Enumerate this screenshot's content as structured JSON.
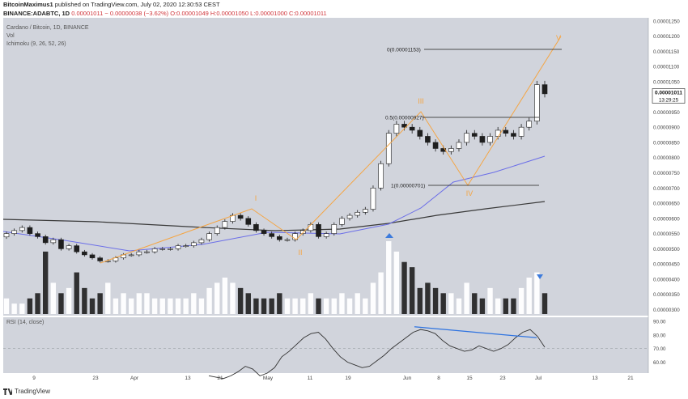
{
  "header": {
    "line1_user": "BitcoinMaximus1",
    "line1_rest": "published on TradingView.com, July 02, 2020 12:30:53 CEST",
    "line2_symbol": "BINANCE:ADABTC, 1D",
    "line2_price": "0.00001011",
    "line2_change": "− 0.00000038 (−3.62%)",
    "line2_ohlc": "O:0.00001049 H:0.00001050 L:0.00001000 C:0.00001011"
  },
  "legend": {
    "title": "Cardano / Bitcoin, 1D, BINANCE",
    "vol": "Vol",
    "ichimoku": "Ichimoku (9, 26, 52, 26)",
    "rsi": "RSI (14, close)"
  },
  "footer": {
    "brand": "TradingView"
  },
  "colors": {
    "panel": "#d1d4dc",
    "up": "#ffffff",
    "down": "#1e1e1e",
    "wave": "#f5a543",
    "kijun": "#6b6ee8",
    "baseline": "#3a3a3a",
    "rsi": "#333333",
    "divergence": "#2e73e0",
    "marker": "#3d7bdc"
  },
  "chart_data": {
    "type": "candlestick",
    "x_axis_ticks": [
      "9",
      "23",
      "Apr",
      "13",
      "21",
      "May",
      "11",
      "19",
      "Jun",
      "8",
      "15",
      "23",
      "Jul",
      "13",
      "21"
    ],
    "y_axis": {
      "ticks": [
        "0.00001250",
        "0.00001200",
        "0.00001150",
        "0.00001100",
        "0.00001050",
        "0.00000950",
        "0.00000900",
        "0.00000850",
        "0.00000800",
        "0.00000750",
        "0.00000700",
        "0.00000650",
        "0.00000600",
        "0.00000550",
        "0.00000500",
        "0.00000450",
        "0.00000400",
        "0.00000350",
        "0.00000300"
      ],
      "range": [
        2.8e-06,
        1.26e-05
      ]
    },
    "last_price": {
      "value": "0.00001011",
      "countdown": "13:29:25"
    },
    "candles_close": [
      5.5e-06,
      5.6e-06,
      5.7e-06,
      5.5e-06,
      5.4e-06,
      5.2e-06,
      5.3e-06,
      5e-06,
      5.1e-06,
      4.9e-06,
      4.8e-06,
      4.7e-06,
      4.6e-06,
      4.6e-06,
      4.7e-06,
      4.8e-06,
      4.8e-06,
      4.9e-06,
      4.9e-06,
      5e-06,
      5e-06,
      5e-06,
      5.1e-06,
      5.1e-06,
      5.2e-06,
      5.3e-06,
      5.5e-06,
      5.7e-06,
      5.9e-06,
      6.1e-06,
      6e-06,
      5.8e-06,
      5.6e-06,
      5.5e-06,
      5.4e-06,
      5.3e-06,
      5.3e-06,
      5.5e-06,
      5.6e-06,
      5.8e-06,
      5.4e-06,
      5.5e-06,
      5.8e-06,
      6e-06,
      6.1e-06,
      6.2e-06,
      6.3e-06,
      7e-06,
      7.8e-06,
      8.8e-06,
      9.1e-06,
      9e-06,
      8.9e-06,
      8.7e-06,
      8.5e-06,
      8.3e-06,
      8.2e-06,
      8.3e-06,
      8.5e-06,
      8.8e-06,
      8.7e-06,
      8.5e-06,
      8.7e-06,
      8.9e-06,
      8.8e-06,
      8.7e-06,
      9e-06,
      9.2e-06,
      1.04e-05,
      1.01e-05
    ],
    "volume": [
      3,
      2,
      2,
      3,
      4,
      12,
      6,
      4,
      5,
      8,
      5,
      3,
      4,
      6,
      3,
      4,
      3,
      4,
      4,
      3,
      3,
      3,
      3,
      3,
      4,
      3,
      5,
      6,
      7,
      6,
      5,
      4,
      3,
      3,
      3,
      4,
      3,
      3,
      3,
      4,
      3,
      3,
      3,
      4,
      3,
      4,
      3,
      6,
      8,
      14,
      12,
      10,
      9,
      5,
      6,
      5,
      4,
      4,
      3,
      6,
      4,
      3,
      5,
      3,
      3,
      3,
      5,
      7,
      8,
      4
    ],
    "rsi": {
      "levels": [
        "90.00",
        "80.00",
        "70.00",
        "60.00"
      ],
      "values": [
        50,
        49,
        48,
        50,
        53,
        57,
        55,
        50,
        52,
        56,
        64,
        68,
        73,
        78,
        81,
        82,
        77,
        70,
        64,
        60,
        58,
        56,
        57,
        61,
        65,
        70,
        74,
        78,
        82,
        84,
        83,
        81,
        76,
        72,
        70,
        68,
        69,
        72,
        70,
        68,
        70,
        73,
        78,
        82,
        84,
        79,
        71
      ]
    },
    "annotations": {
      "fib_0": "0(0.00001153)",
      "fib_05": "0.5(0.00000927)",
      "fib_1": "1(0.00000701)",
      "waves": [
        "I",
        "II",
        "III",
        "IV",
        "V"
      ]
    }
  }
}
